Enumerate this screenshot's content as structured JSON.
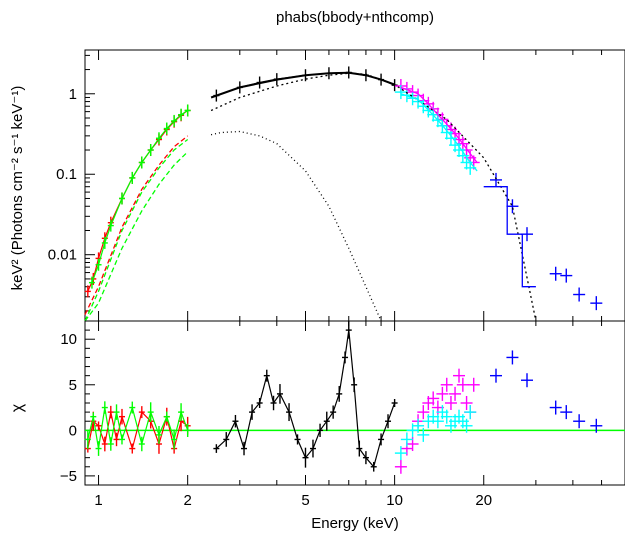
{
  "chart_data": {
    "type": "scatter",
    "title": "phabs(bbody+nthcomp)",
    "xlabel": "Energy (keV)",
    "x_scale": "log",
    "xlim": [
      0.9,
      60
    ],
    "x_ticks": [
      1,
      2,
      5,
      10,
      20
    ],
    "panels": [
      {
        "id": "spectrum",
        "ylabel": "keV² (Photons cm⁻² s⁻¹ keV⁻¹)",
        "y_scale": "log",
        "ylim": [
          0.0015,
          3.5
        ],
        "y_ticks": [
          {
            "value": 1,
            "label": "1"
          },
          {
            "value": 0.1,
            "label": "0.1"
          },
          {
            "value": 0.01,
            "label": "0.01"
          }
        ],
        "series": [
          {
            "color": "#ff0000",
            "style": "data",
            "x": [
              0.92,
              0.96,
              1.0,
              1.05,
              1.1,
              1.2,
              1.3,
              1.4,
              1.5,
              1.6,
              1.7,
              1.8,
              1.9,
              2.0
            ],
            "y": [
              0.0035,
              0.005,
              0.009,
              0.016,
              0.025,
              0.05,
              0.09,
              0.14,
              0.2,
              0.27,
              0.36,
              0.45,
              0.54,
              0.62
            ]
          },
          {
            "color": "#00ff00",
            "style": "data",
            "x": [
              0.95,
              1.0,
              1.05,
              1.1,
              1.2,
              1.3,
              1.4,
              1.5,
              1.6,
              1.7,
              1.8,
              1.9,
              2.0
            ],
            "y": [
              0.0045,
              0.0075,
              0.014,
              0.023,
              0.05,
              0.09,
              0.14,
              0.2,
              0.28,
              0.37,
              0.46,
              0.55,
              0.62
            ]
          },
          {
            "color": "#000000",
            "style": "data",
            "x": [
              2.5,
              3,
              3.5,
              4,
              5,
              6,
              7,
              8,
              9,
              10
            ],
            "y": [
              0.95,
              1.2,
              1.38,
              1.52,
              1.7,
              1.8,
              1.84,
              1.7,
              1.5,
              1.28
            ]
          },
          {
            "color": "#ff00ff",
            "style": "data",
            "x": [
              10.5,
              11,
              11.5,
              12,
              12.5,
              13,
              13.5,
              14,
              14.5,
              15,
              15.5,
              16,
              16.5,
              17,
              17.5,
              18,
              18.5
            ],
            "y": [
              1.25,
              1.15,
              1.05,
              0.95,
              0.82,
              0.75,
              0.65,
              0.55,
              0.48,
              0.4,
              0.36,
              0.32,
              0.27,
              0.24,
              0.2,
              0.16,
              0.14
            ]
          },
          {
            "color": "#00ffff",
            "style": "data",
            "x": [
              10.5,
              11,
              11.5,
              12,
              12.5,
              13,
              13.5,
              14,
              14.5,
              15,
              15.5,
              16,
              16.5,
              17,
              17.5,
              18
            ],
            "y": [
              1.05,
              0.96,
              0.88,
              0.8,
              0.7,
              0.62,
              0.55,
              0.47,
              0.4,
              0.33,
              0.28,
              0.23,
              0.2,
              0.17,
              0.14,
              0.12
            ]
          },
          {
            "color": "#0000ff",
            "style": "data",
            "x": [
              22,
              25,
              28,
              35,
              38,
              42,
              48
            ],
            "y": [
              0.085,
              0.04,
              0.018,
              0.0058,
              0.0055,
              0.0032,
              0.0025
            ]
          },
          {
            "color": "#000000",
            "style": "model-total",
            "x": [
              2.4,
              3,
              4,
              5,
              6,
              7,
              8,
              9,
              10
            ],
            "y": [
              0.9,
              1.2,
              1.5,
              1.7,
              1.8,
              1.83,
              1.7,
              1.5,
              1.3
            ]
          },
          {
            "color": "#000000",
            "style": "model-dotted",
            "x": [
              2.4,
              3,
              4,
              5,
              6,
              7,
              8,
              10,
              15,
              20,
              25,
              30
            ],
            "y": [
              0.62,
              0.9,
              1.25,
              1.52,
              1.7,
              1.8,
              1.75,
              1.3,
              0.48,
              0.16,
              0.04,
              0.0015
            ]
          },
          {
            "color": "#000000",
            "style": "model-dashdot",
            "x": [
              2.4,
              2.6,
              3,
              3.5,
              4,
              5,
              6,
              7,
              8,
              9
            ],
            "y": [
              0.31,
              0.33,
              0.34,
              0.3,
              0.24,
              0.11,
              0.04,
              0.012,
              0.004,
              0.0015
            ]
          },
          {
            "color": "#00ff00",
            "style": "model-dashed",
            "x": [
              0.9,
              1.0,
              1.2,
              1.4,
              1.6,
              1.8,
              2.0
            ],
            "y": [
              0.0015,
              0.0035,
              0.02,
              0.06,
              0.12,
              0.2,
              0.27
            ]
          },
          {
            "color": "#00ff00",
            "style": "model-dashed",
            "x": [
              0.9,
              1.0,
              1.2,
              1.4,
              1.6,
              1.8,
              2.0
            ],
            "y": [
              0.0015,
              0.0025,
              0.012,
              0.035,
              0.075,
              0.13,
              0.19
            ]
          },
          {
            "color": "#ff0000",
            "style": "model-dashed",
            "x": [
              0.9,
              1.0,
              1.2,
              1.4,
              1.6,
              1.8,
              2.0
            ],
            "y": [
              0.0018,
              0.004,
              0.022,
              0.065,
              0.13,
              0.22,
              0.3
            ]
          },
          {
            "color": "#0000ff",
            "style": "model-step",
            "x": [
              20,
              24,
              24,
              27,
              27,
              30
            ],
            "y": [
              0.07,
              0.07,
              0.018,
              0.018,
              0.004,
              0.004
            ]
          },
          {
            "color": "#ff00ff",
            "style": "model-step",
            "x": [
              10.5,
              12,
              13,
              14,
              15,
              16,
              17,
              18,
              19
            ],
            "y": [
              1.2,
              1.0,
              0.75,
              0.55,
              0.42,
              0.32,
              0.24,
              0.18,
              0.14
            ]
          },
          {
            "color": "#00ffff",
            "style": "model-step",
            "x": [
              10.5,
              12,
              13,
              14,
              15,
              16,
              17,
              18,
              19
            ],
            "y": [
              1.0,
              0.85,
              0.63,
              0.47,
              0.35,
              0.26,
              0.19,
              0.14,
              0.11
            ]
          }
        ]
      },
      {
        "id": "residuals",
        "ylabel": "χ",
        "y_scale": "linear",
        "ylim": [
          -6,
          12
        ],
        "y_ticks": [
          {
            "value": 10,
            "label": "10"
          },
          {
            "value": 5,
            "label": "5"
          },
          {
            "value": 0,
            "label": "0"
          },
          {
            "value": -5,
            "label": "−5"
          }
        ],
        "zero_line_color": "#00ff00",
        "series": [
          {
            "color": "#ff0000",
            "x": [
              0.92,
              0.96,
              1.0,
              1.05,
              1.1,
              1.15,
              1.2,
              1.3,
              1.4,
              1.5,
              1.6,
              1.7,
              1.8,
              1.9,
              2.0
            ],
            "y": [
              -2,
              1,
              0.5,
              -1.5,
              2,
              -1,
              1.5,
              -2,
              2,
              1,
              -1.5,
              1.5,
              -2,
              1,
              0.5
            ]
          },
          {
            "color": "#00ff00",
            "x": [
              0.92,
              0.96,
              1.0,
              1.05,
              1.1,
              1.15,
              1.2,
              1.3,
              1.4,
              1.5,
              1.6,
              1.7,
              1.8,
              1.9,
              2.0
            ],
            "y": [
              -1,
              1.5,
              -2,
              2.5,
              -1.5,
              2,
              -1,
              2.5,
              -1.5,
              2,
              -0.5,
              1.5,
              -1,
              2,
              0
            ]
          },
          {
            "color": "#000000",
            "x": [
              2.5,
              2.7,
              2.9,
              3.1,
              3.3,
              3.5,
              3.7,
              3.9,
              4.1,
              4.4,
              4.7,
              5.0,
              5.3,
              5.6,
              5.9,
              6.2,
              6.5,
              6.8,
              7.0,
              7.3,
              7.6,
              8.0,
              8.5,
              9.0,
              9.5,
              10.0
            ],
            "y": [
              -2,
              -1,
              1,
              -2,
              2,
              3,
              6,
              3,
              4,
              2,
              -1,
              -3,
              -2,
              0,
              1,
              2,
              4,
              8,
              11,
              5,
              -2,
              -3,
              -4,
              -1,
              1,
              3
            ]
          },
          {
            "color": "#ff00ff",
            "x": [
              10.5,
              11,
              11.5,
              12,
              12.5,
              13,
              13.5,
              14,
              14.5,
              15,
              15.5,
              16,
              16.5,
              17,
              17.5,
              18,
              18.5
            ],
            "y": [
              -4,
              -2,
              -1.5,
              1,
              2,
              3,
              3.5,
              2.5,
              4,
              5,
              3,
              4,
              6,
              5,
              3,
              2,
              5
            ]
          },
          {
            "color": "#00ffff",
            "x": [
              10.5,
              11,
              11.5,
              12,
              12.5,
              13,
              13.5,
              14,
              14.5,
              15,
              15.5,
              16,
              16.5,
              17,
              17.5,
              18
            ],
            "y": [
              -2.5,
              -1,
              0,
              0.5,
              -0.5,
              1,
              1.5,
              1,
              2,
              1.5,
              0.5,
              1,
              1.5,
              1,
              0.5,
              2
            ]
          },
          {
            "color": "#0000ff",
            "x": [
              22,
              25,
              28,
              35,
              38,
              42,
              48
            ],
            "y": [
              6,
              8,
              5.5,
              2.5,
              2,
              1,
              0.5
            ]
          }
        ]
      }
    ],
    "grid": false,
    "legend": "none"
  }
}
